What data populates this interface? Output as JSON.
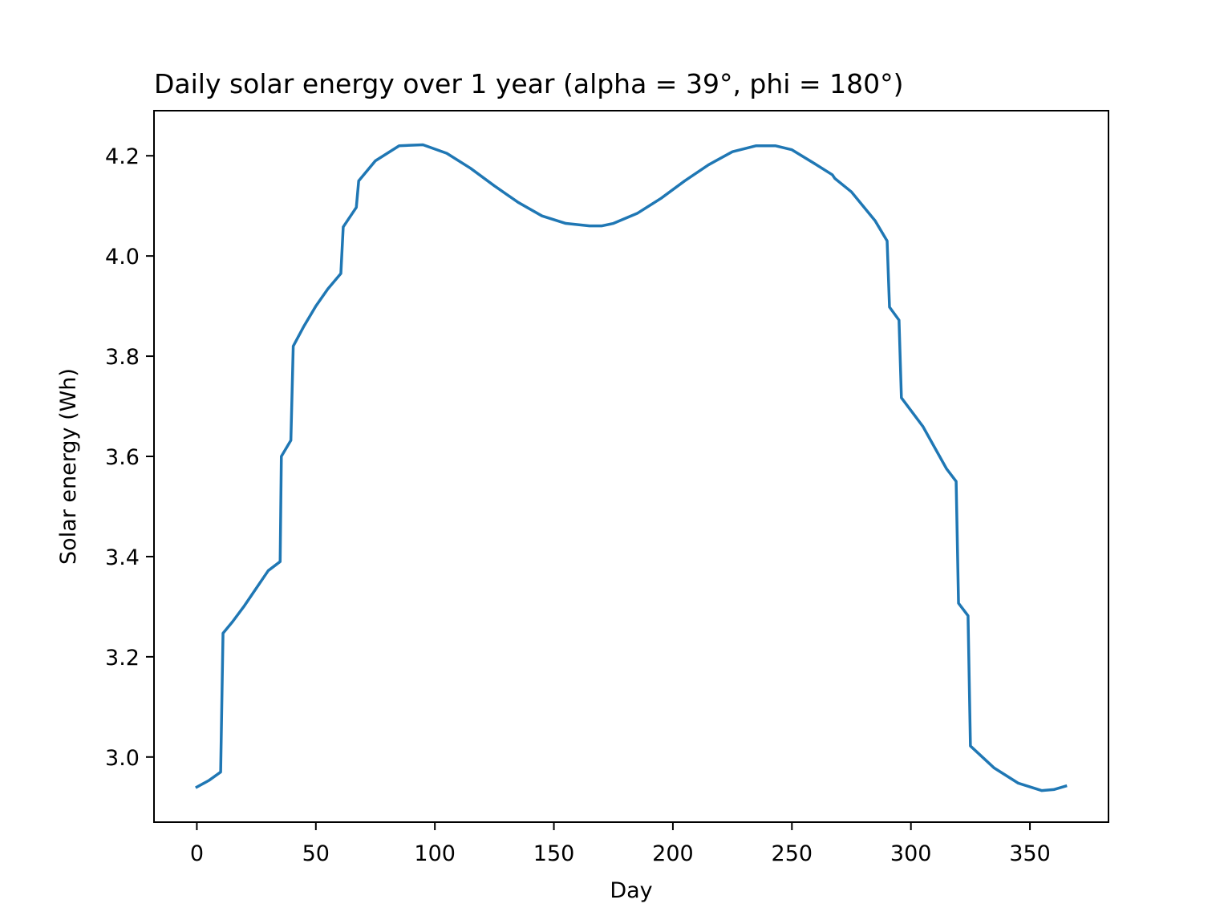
{
  "chart_data": {
    "type": "line",
    "title": "Daily solar energy over 1 year (alpha = 39°, phi = 180°)",
    "xlabel": "Day",
    "ylabel": "Solar energy (Wh)",
    "xlim": [
      -18,
      383
    ],
    "ylim": [
      2.87,
      4.29
    ],
    "xticks": [
      0,
      50,
      100,
      150,
      200,
      250,
      300,
      350
    ],
    "yticks": [
      3.0,
      3.2,
      3.4,
      3.6,
      3.8,
      4.0,
      4.2
    ],
    "x_tick_labels": [
      "0",
      "50",
      "100",
      "150",
      "200",
      "250",
      "300",
      "350"
    ],
    "y_tick_labels": [
      "3.0",
      "3.2",
      "3.4",
      "3.6",
      "3.8",
      "4.0",
      "4.2"
    ],
    "grid": false,
    "series": [
      {
        "color": "#1f77b4",
        "x": [
          0,
          5,
          10,
          11,
          15,
          20,
          25,
          30,
          35,
          35.5,
          39.5,
          40.5,
          45,
          50,
          55,
          60.5,
          61.5,
          67,
          68,
          75,
          85,
          95,
          105,
          115,
          125,
          135,
          145,
          155,
          165,
          170,
          175,
          185,
          195,
          205,
          215,
          225,
          235,
          243,
          250,
          260,
          267,
          268,
          275,
          285,
          290,
          291,
          295,
          296,
          305,
          315,
          319,
          320,
          324,
          325,
          335,
          345,
          355,
          360,
          365
        ],
        "y": [
          2.94,
          2.953,
          2.97,
          3.247,
          3.27,
          3.302,
          3.337,
          3.372,
          3.39,
          3.6,
          3.632,
          3.82,
          3.86,
          3.9,
          3.934,
          3.965,
          4.058,
          4.097,
          4.15,
          4.19,
          4.22,
          4.222,
          4.205,
          4.175,
          4.14,
          4.107,
          4.08,
          4.065,
          4.06,
          4.06,
          4.065,
          4.085,
          4.115,
          4.15,
          4.182,
          4.208,
          4.22,
          4.22,
          4.212,
          4.183,
          4.162,
          4.155,
          4.128,
          4.07,
          4.03,
          3.898,
          3.872,
          3.717,
          3.66,
          3.575,
          3.55,
          3.307,
          3.282,
          3.022,
          2.978,
          2.948,
          2.933,
          2.935,
          2.942
        ]
      }
    ]
  }
}
